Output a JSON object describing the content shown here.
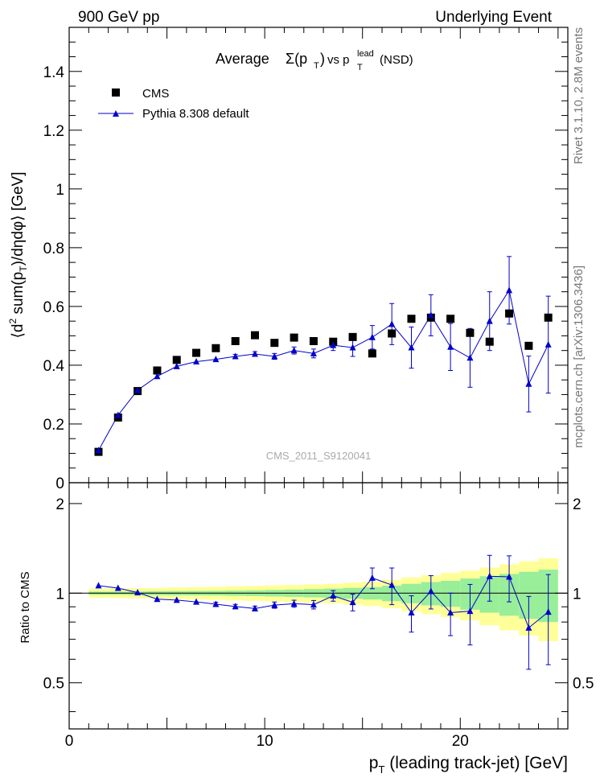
{
  "header": {
    "left": "900 GeV pp",
    "right": "Underlying Event"
  },
  "side_labels": {
    "top": "Rivet 3.1.10,  2.8M events",
    "bottom": "mcplots.cern.ch [arXiv:1306.3436]"
  },
  "colors": {
    "data": "#000000",
    "mc": "#0000cc",
    "band_inner": "#99ee99",
    "band_outer": "#ffff99"
  },
  "chart_data": [
    {
      "type": "scatter",
      "title_text": "Average",
      "title_sigma": "Σ(p",
      "title_vs": "vs p",
      "title_lead": "lead",
      "title_t": "T",
      "title_tail": "(NSD)",
      "ylabel": "⟨d² sum(p_T)/dηdφ⟩ [GeV]",
      "ylabel_parts": {
        "a": "⟨d",
        "sup": "2",
        "b": " sum(p",
        "sub": "T",
        "c": ")/dηdφ⟩ [GeV]"
      },
      "watermark": "CMS_2011_S9120041",
      "xlim": [
        0,
        25.5
      ],
      "ylim": [
        0,
        1.55
      ],
      "yticks": [
        "0",
        "0.2",
        "0.4",
        "0.6",
        "0.8",
        "1",
        "1.2",
        "1.4"
      ],
      "ytick_values": [
        0,
        0.2,
        0.4,
        0.6,
        0.8,
        1.0,
        1.2,
        1.4
      ],
      "legend_placement": "top-left",
      "series": [
        {
          "name": "CMS",
          "marker": "square",
          "x": [
            1.5,
            2.5,
            3.5,
            4.5,
            5.5,
            6.5,
            7.5,
            8.5,
            9.5,
            10.5,
            11.5,
            12.5,
            13.5,
            14.5,
            15.5,
            16.5,
            17.5,
            18.5,
            19.5,
            20.5,
            21.5,
            22.5,
            23.5,
            24.5
          ],
          "y": [
            0.105,
            0.222,
            0.312,
            0.382,
            0.418,
            0.442,
            0.458,
            0.482,
            0.502,
            0.476,
            0.494,
            0.482,
            0.48,
            0.496,
            0.44,
            0.508,
            0.558,
            0.562,
            0.558,
            0.51,
            0.48,
            0.576,
            0.466,
            0.562
          ]
        },
        {
          "name": "Pythia 8.308 default",
          "marker": "triangle",
          "x": [
            1.5,
            2.5,
            3.5,
            4.5,
            5.5,
            6.5,
            7.5,
            8.5,
            9.5,
            10.5,
            11.5,
            12.5,
            13.5,
            14.5,
            15.5,
            16.5,
            17.5,
            18.5,
            19.5,
            20.5,
            21.5,
            22.5,
            23.5,
            24.5
          ],
          "y": [
            0.11,
            0.23,
            0.315,
            0.362,
            0.396,
            0.412,
            0.42,
            0.43,
            0.438,
            0.43,
            0.45,
            0.44,
            0.468,
            0.46,
            0.495,
            0.54,
            0.46,
            0.57,
            0.462,
            0.425,
            0.55,
            0.655,
            0.336,
            0.47
          ],
          "yerr": [
            0.002,
            0.003,
            0.003,
            0.004,
            0.005,
            0.005,
            0.006,
            0.007,
            0.008,
            0.01,
            0.012,
            0.015,
            0.018,
            0.03,
            0.04,
            0.07,
            0.07,
            0.07,
            0.08,
            0.1,
            0.1,
            0.115,
            0.095,
            0.165
          ]
        }
      ]
    },
    {
      "type": "scatter",
      "ylabel": "Ratio to CMS",
      "xlabel_parts": {
        "a": "p",
        "sub": "T",
        "b": " (leading track-jet) [GeV]"
      },
      "xlim": [
        0,
        25.5
      ],
      "ylim": [
        0.35,
        2.35
      ],
      "xticks": [
        "0",
        "10",
        "20"
      ],
      "xtick_values": [
        0,
        10,
        20
      ],
      "yticks": [
        "0.5",
        "1",
        "2"
      ],
      "ytick_values": [
        0.5,
        1,
        2
      ],
      "reference_line": 1,
      "bands": {
        "x_edges": [
          1,
          2,
          3,
          4,
          5,
          6,
          7,
          8,
          9,
          10,
          11,
          12,
          13,
          14,
          15,
          16,
          17,
          18,
          19,
          20,
          21,
          22,
          23,
          24,
          25
        ],
        "inner_halfwidth": [
          0.012,
          0.012,
          0.013,
          0.015,
          0.016,
          0.017,
          0.018,
          0.02,
          0.022,
          0.025,
          0.028,
          0.032,
          0.036,
          0.042,
          0.048,
          0.06,
          0.075,
          0.09,
          0.1,
          0.12,
          0.14,
          0.16,
          0.18,
          0.2
        ],
        "outer_halfwidth": [
          0.035,
          0.038,
          0.04,
          0.042,
          0.045,
          0.048,
          0.05,
          0.055,
          0.058,
          0.062,
          0.066,
          0.07,
          0.075,
          0.085,
          0.095,
          0.11,
          0.13,
          0.15,
          0.17,
          0.19,
          0.22,
          0.25,
          0.28,
          0.31
        ]
      },
      "series": [
        {
          "name": "Pythia 8.308 default",
          "x": [
            1.5,
            2.5,
            3.5,
            4.5,
            5.5,
            6.5,
            7.5,
            8.5,
            9.5,
            10.5,
            11.5,
            12.5,
            13.5,
            14.5,
            15.5,
            16.5,
            17.5,
            18.5,
            19.5,
            20.5,
            21.5,
            22.5,
            23.5,
            24.5
          ],
          "y": [
            1.06,
            1.04,
            1.005,
            0.955,
            0.948,
            0.935,
            0.918,
            0.902,
            0.888,
            0.912,
            0.922,
            0.915,
            0.98,
            0.932,
            1.125,
            1.065,
            0.86,
            1.015,
            0.86,
            0.87,
            1.14,
            1.135,
            0.765,
            0.865
          ],
          "yerr": [
            0.01,
            0.01,
            0.01,
            0.01,
            0.012,
            0.012,
            0.014,
            0.015,
            0.017,
            0.022,
            0.025,
            0.03,
            0.04,
            0.06,
            0.09,
            0.15,
            0.12,
            0.13,
            0.14,
            0.2,
            0.2,
            0.2,
            0.21,
            0.29
          ]
        }
      ]
    }
  ]
}
